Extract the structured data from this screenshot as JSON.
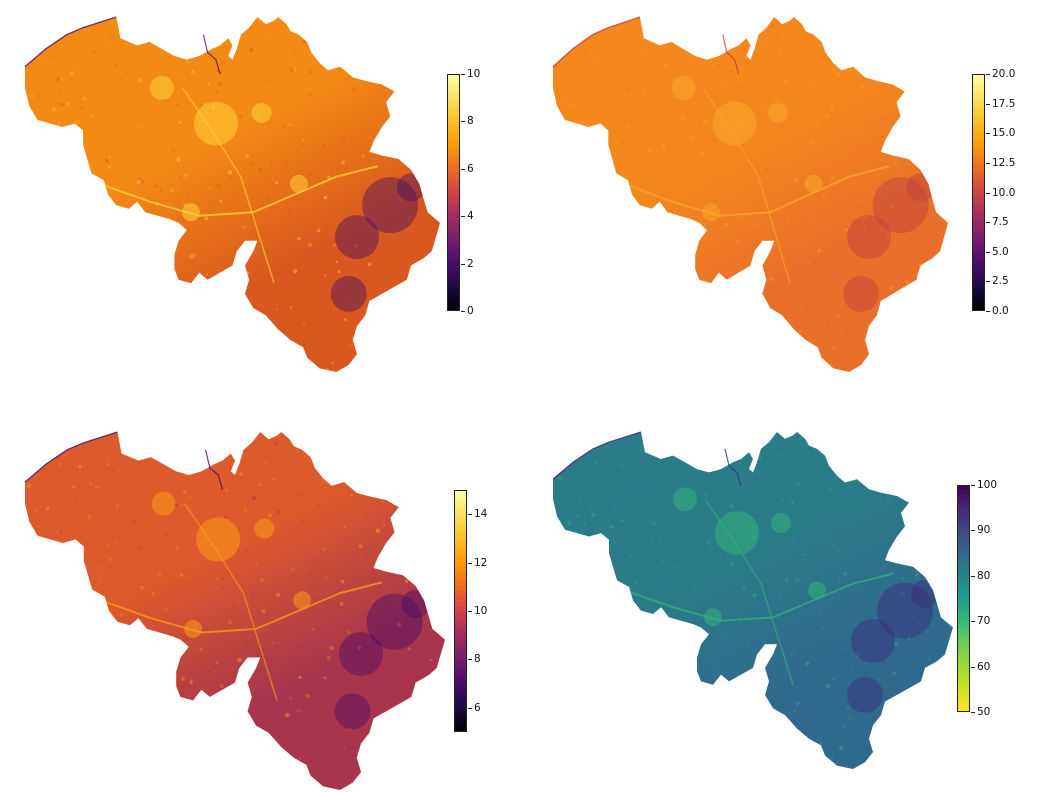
{
  "maps": [
    {
      "name": "top-left",
      "colormap": "inferno",
      "colorbar": {
        "min": 0,
        "max": 10,
        "ticks": [
          "0",
          "2",
          "4",
          "6",
          "8",
          "10"
        ],
        "tick_values": [
          0,
          2,
          4,
          6,
          8,
          10
        ]
      },
      "colors": {
        "fill": "#f38a13",
        "south": "#d8581f",
        "bright": "#ffd23a",
        "dark": "#4d0f5f"
      }
    },
    {
      "name": "top-right",
      "colormap": "inferno",
      "colorbar": {
        "min": 0,
        "max": 20,
        "ticks": [
          "0.0",
          "2.5",
          "5.0",
          "7.5",
          "10.0",
          "12.5",
          "15.0",
          "17.5",
          "20.0"
        ],
        "tick_values": [
          0,
          2.5,
          5,
          7.5,
          10,
          12.5,
          15,
          17.5,
          20
        ]
      },
      "colors": {
        "fill": "#f5881c",
        "south": "#e9702a",
        "bright": "#f9a72c",
        "dark": "#bd3f3f"
      }
    },
    {
      "name": "bottom-left",
      "colormap": "inferno",
      "colorbar": {
        "min": 5,
        "max": 15,
        "ticks": [
          "6",
          "8",
          "10",
          "12",
          "14"
        ],
        "tick_values": [
          6,
          8,
          10,
          12,
          14
        ]
      },
      "colors": {
        "fill": "#dd5a2c",
        "south": "#a8354c",
        "bright": "#fb9b17",
        "dark": "#4c0c66"
      }
    },
    {
      "name": "bottom-right",
      "colormap": "viridis_r",
      "colorbar": {
        "min": 50,
        "max": 100,
        "ticks": [
          "50",
          "60",
          "70",
          "80",
          "90",
          "100"
        ],
        "tick_values": [
          50,
          60,
          70,
          80,
          90,
          100
        ]
      },
      "colors": {
        "fill": "#2a7d88",
        "south": "#2f6a8c",
        "bright": "#33b07a",
        "dark": "#3e2b7c"
      }
    }
  ]
}
